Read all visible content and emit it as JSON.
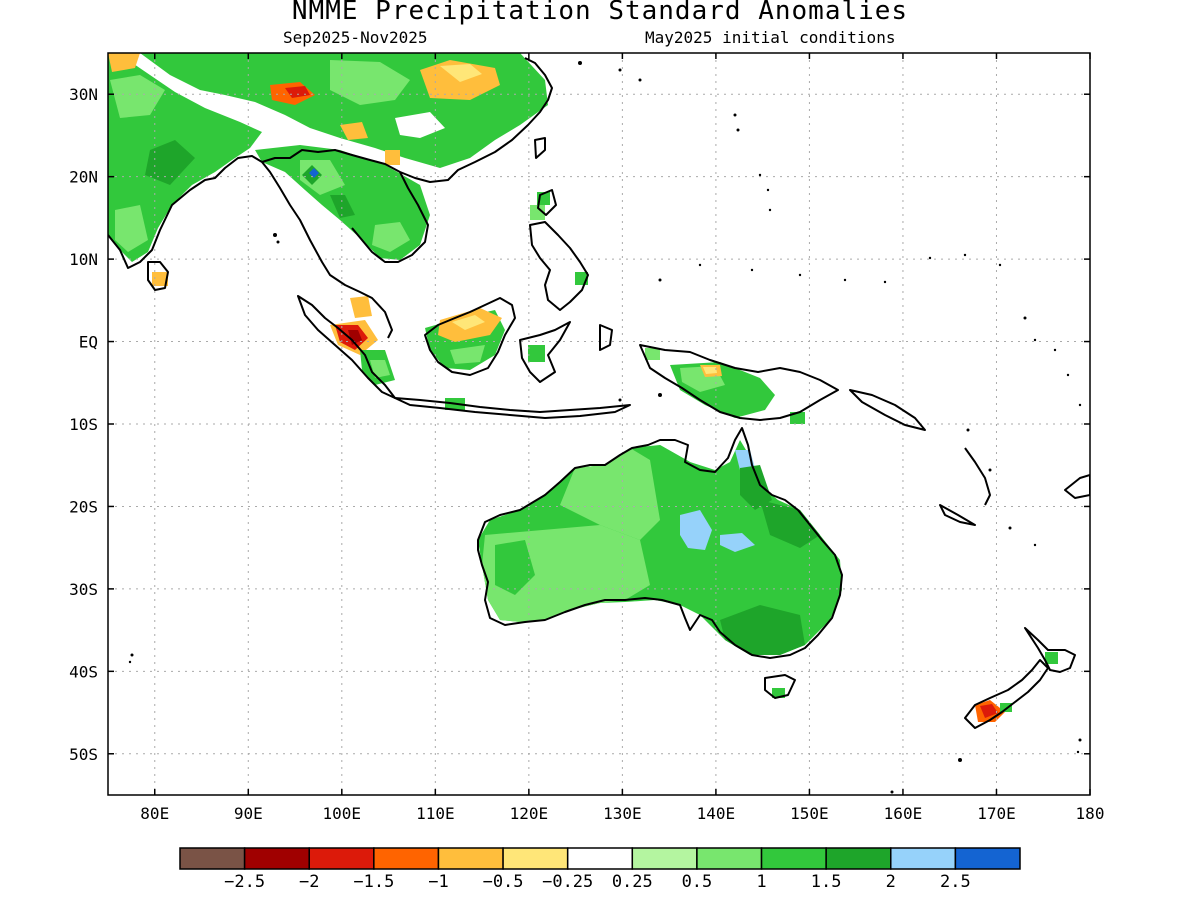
{
  "title": "NMME Precipitation Standard Anomalies",
  "subtitle_left": "Sep2025-Nov2025",
  "subtitle_right": "May2025 initial conditions",
  "map": {
    "lon_range": [
      75,
      180
    ],
    "lat_range": [
      -55,
      35
    ],
    "lon_ticks": [
      "80E",
      "90E",
      "100E",
      "110E",
      "120E",
      "130E",
      "140E",
      "150E",
      "160E",
      "170E",
      "180"
    ],
    "lat_ticks": [
      "30N",
      "20N",
      "10N",
      "EQ",
      "10S",
      "20S",
      "30S",
      "40S",
      "50S"
    ],
    "grid": true
  },
  "colorbar": {
    "colors": [
      "#7a5346",
      "#a00000",
      "#dc1a0a",
      "#ff6400",
      "#ffbe3c",
      "#ffe678",
      "#ffffff",
      "#b4f5a0",
      "#78e66e",
      "#32c83c",
      "#1ea52a",
      "#96d2fa",
      "#1464d2"
    ],
    "labels": [
      "-2.5",
      "-2",
      "-1.5",
      "-1",
      "-0.5",
      "-0.25",
      "0.25",
      "0.5",
      "1",
      "1.5",
      "2",
      "2.5"
    ]
  }
}
